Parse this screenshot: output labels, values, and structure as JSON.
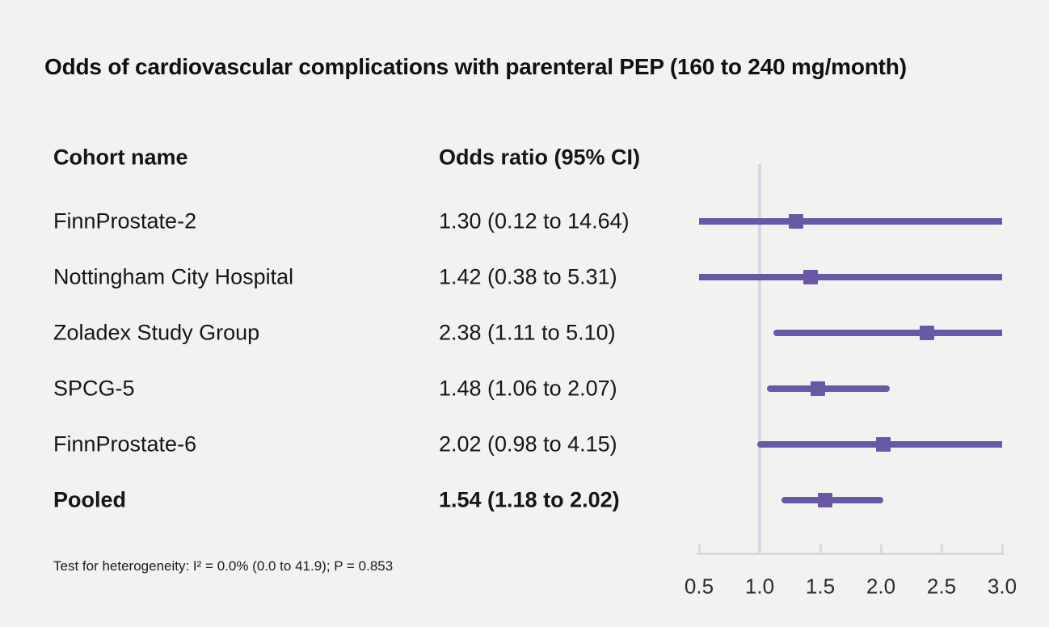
{
  "title": "Odds of cardiovascular complications with parenteral PEP (160 to 240 mg/month)",
  "table": {
    "cohort_header": "Cohort name",
    "odds_header": "Odds ratio (95% CI)"
  },
  "footnote": "Test for heterogeneity: I² = 0.0% (0.0 to 41.9); P = 0.853",
  "colors": {
    "marker": "#6958a6",
    "axis": "#d5d9e2",
    "background": "#f2f2f1",
    "text": "#161616"
  },
  "chart_data": {
    "type": "scatter",
    "variant": "forest-plot",
    "title": "Odds of cardiovascular complications with parenteral PEP (160 to 240 mg/month)",
    "xlabel": "Odds ratio",
    "xlim": [
      0.5,
      3.0
    ],
    "x_ticks": [
      0.5,
      1.0,
      1.5,
      2.0,
      2.5,
      3.0
    ],
    "x_tick_labels": [
      "0.5",
      "1.0",
      "1.5",
      "2.0",
      "2.5",
      "3.0"
    ],
    "reference_line": 1.0,
    "grid": false,
    "legend": false,
    "rows": [
      {
        "cohort": "FinnProstate-2",
        "odds_ratio": 1.3,
        "ci_low": 0.12,
        "ci_high": 14.64,
        "display": "1.30 (0.12 to 14.64)",
        "pooled": false
      },
      {
        "cohort": "Nottingham City Hospital",
        "odds_ratio": 1.42,
        "ci_low": 0.38,
        "ci_high": 5.31,
        "display": "1.42 (0.38 to 5.31)",
        "pooled": false
      },
      {
        "cohort": "Zoladex Study Group",
        "odds_ratio": 2.38,
        "ci_low": 1.11,
        "ci_high": 5.1,
        "display": "2.38 (1.11 to 5.10)",
        "pooled": false
      },
      {
        "cohort": "SPCG-5",
        "odds_ratio": 1.48,
        "ci_low": 1.06,
        "ci_high": 2.07,
        "display": "1.48 (1.06 to 2.07)",
        "pooled": false
      },
      {
        "cohort": "FinnProstate-6",
        "odds_ratio": 2.02,
        "ci_low": 0.98,
        "ci_high": 4.15,
        "display": "2.02 (0.98 to 4.15)",
        "pooled": false
      },
      {
        "cohort": "Pooled",
        "odds_ratio": 1.54,
        "ci_low": 1.18,
        "ci_high": 2.02,
        "display": "1.54 (1.18 to 2.02)",
        "pooled": true
      }
    ]
  }
}
